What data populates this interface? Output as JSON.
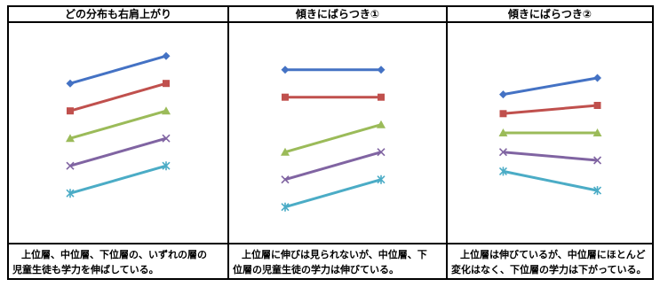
{
  "panels": [
    {
      "title": "どの分布も右肩上がり",
      "caption_line1": "上位層、中位層、下位層の、いずれの層の",
      "caption_line2": "児童生徒も学力を伸ばしている。"
    },
    {
      "title": "傾きにばらつき①",
      "caption_line1": "上位層に伸びは見られないが、中位層、下",
      "caption_line2": "位層の児童生徒の学力は伸びている。"
    },
    {
      "title": "傾きにばらつき②",
      "caption_line1": "上位層は伸びているが、中位層にほとんど",
      "caption_line2": "変化はなく、下位層の学力は下がっている。"
    }
  ],
  "chart_data": [
    {
      "type": "line",
      "x": [
        1,
        2
      ],
      "series": [
        {
          "marker": "diamond",
          "color": "#4472C4",
          "values": [
            5.8,
            6.8
          ]
        },
        {
          "marker": "square",
          "color": "#C0504D",
          "values": [
            4.8,
            5.8
          ]
        },
        {
          "marker": "triangle",
          "color": "#9BBB59",
          "values": [
            3.8,
            4.8
          ]
        },
        {
          "marker": "x",
          "color": "#8064A2",
          "values": [
            2.8,
            3.8
          ]
        },
        {
          "marker": "star",
          "color": "#4BACC6",
          "values": [
            1.8,
            2.8
          ]
        }
      ],
      "ylim": [
        0,
        8
      ]
    },
    {
      "type": "line",
      "x": [
        1,
        2
      ],
      "series": [
        {
          "marker": "diamond",
          "color": "#4472C4",
          "values": [
            6.3,
            6.3
          ]
        },
        {
          "marker": "square",
          "color": "#C0504D",
          "values": [
            5.3,
            5.3
          ]
        },
        {
          "marker": "triangle",
          "color": "#9BBB59",
          "values": [
            3.3,
            4.3
          ]
        },
        {
          "marker": "x",
          "color": "#8064A2",
          "values": [
            2.3,
            3.3
          ]
        },
        {
          "marker": "star",
          "color": "#4BACC6",
          "values": [
            1.3,
            2.3
          ]
        }
      ],
      "ylim": [
        0,
        8
      ]
    },
    {
      "type": "line",
      "x": [
        1,
        2
      ],
      "series": [
        {
          "marker": "diamond",
          "color": "#4472C4",
          "values": [
            5.4,
            6.0
          ]
        },
        {
          "marker": "square",
          "color": "#C0504D",
          "values": [
            4.7,
            5.0
          ]
        },
        {
          "marker": "triangle",
          "color": "#9BBB59",
          "values": [
            4.0,
            4.0
          ]
        },
        {
          "marker": "x",
          "color": "#8064A2",
          "values": [
            3.3,
            3.0
          ]
        },
        {
          "marker": "star",
          "color": "#4BACC6",
          "values": [
            2.6,
            1.9
          ]
        }
      ],
      "ylim": [
        0,
        8
      ]
    }
  ]
}
